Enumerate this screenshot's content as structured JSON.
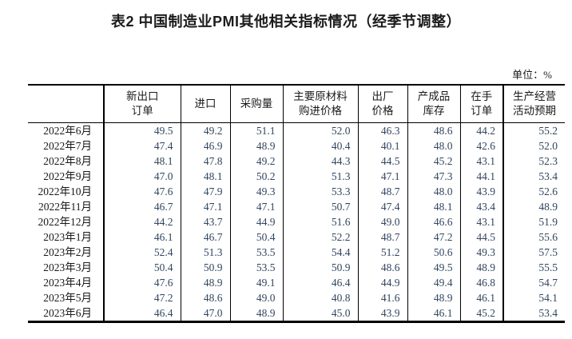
{
  "page": {
    "title": "表2 中国制造业PMI其他相关指标情况（经季节调整）",
    "unit_label": "单位：%"
  },
  "chart_data": {
    "type": "table",
    "title": "表2 中国制造业PMI其他相关指标情况（经季节调整）",
    "unit": "单位：%",
    "columns": [
      "新出口\n订单",
      "进口",
      "采购量",
      "主要原材料\n购进价格",
      "出厂\n价格",
      "产成品\n库存",
      "在手\n订单",
      "生产经营\n活动预期"
    ],
    "rows": [
      {
        "label": "2022年6月",
        "values": [
          "49.5",
          "49.2",
          "51.1",
          "52.0",
          "46.3",
          "48.6",
          "44.2",
          "55.2"
        ]
      },
      {
        "label": "2022年7月",
        "values": [
          "47.4",
          "46.9",
          "48.9",
          "40.4",
          "40.1",
          "48.0",
          "42.6",
          "52.0"
        ]
      },
      {
        "label": "2022年8月",
        "values": [
          "48.1",
          "47.8",
          "49.2",
          "44.3",
          "44.5",
          "45.2",
          "43.1",
          "52.3"
        ]
      },
      {
        "label": "2022年9月",
        "values": [
          "47.0",
          "48.1",
          "50.2",
          "51.3",
          "47.1",
          "47.3",
          "44.1",
          "53.4"
        ]
      },
      {
        "label": "2022年10月",
        "values": [
          "47.6",
          "47.9",
          "49.3",
          "53.3",
          "48.7",
          "48.0",
          "43.9",
          "52.6"
        ]
      },
      {
        "label": "2022年11月",
        "values": [
          "46.7",
          "47.1",
          "47.1",
          "50.7",
          "47.4",
          "48.1",
          "43.4",
          "48.9"
        ]
      },
      {
        "label": "2022年12月",
        "values": [
          "44.2",
          "43.7",
          "44.9",
          "51.6",
          "49.0",
          "46.6",
          "43.1",
          "51.9"
        ]
      },
      {
        "label": "2023年1月",
        "values": [
          "46.1",
          "46.7",
          "50.4",
          "52.2",
          "48.7",
          "47.2",
          "44.5",
          "55.6"
        ]
      },
      {
        "label": "2023年2月",
        "values": [
          "52.4",
          "51.3",
          "53.5",
          "54.4",
          "51.2",
          "50.6",
          "49.3",
          "57.5"
        ]
      },
      {
        "label": "2023年3月",
        "values": [
          "50.4",
          "50.9",
          "53.5",
          "50.9",
          "48.6",
          "49.5",
          "48.9",
          "55.5"
        ]
      },
      {
        "label": "2023年4月",
        "values": [
          "47.6",
          "48.9",
          "49.1",
          "46.4",
          "44.9",
          "49.4",
          "46.8",
          "54.7"
        ]
      },
      {
        "label": "2023年5月",
        "values": [
          "47.2",
          "48.6",
          "49.0",
          "40.8",
          "41.6",
          "48.9",
          "46.1",
          "54.1"
        ]
      },
      {
        "label": "2023年6月",
        "values": [
          "46.4",
          "47.0",
          "48.9",
          "45.0",
          "43.9",
          "46.1",
          "45.2",
          "53.4"
        ]
      }
    ]
  }
}
